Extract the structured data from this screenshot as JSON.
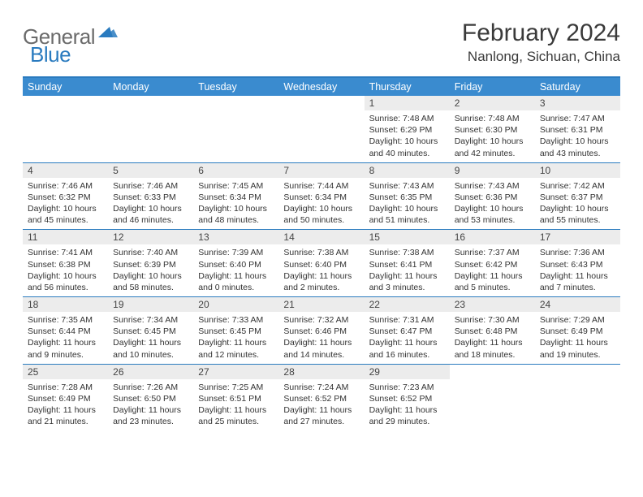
{
  "logo": {
    "text1": "General",
    "text2": "Blue",
    "text1_color": "#6b6b6b",
    "text2_color": "#2a7bbf",
    "tri_fill": "#2a7bbf"
  },
  "title": {
    "month": "February 2024",
    "location": "Nanlong, Sichuan, China"
  },
  "style": {
    "header_bg": "#3a8bcf",
    "header_text": "#ffffff",
    "border_color": "#2a7bbf",
    "daynum_bg": "#ececec",
    "body_bg": "#ffffff",
    "text_color": "#333333",
    "font_family": "Arial, Helvetica, sans-serif",
    "month_title_fontsize": 30,
    "location_fontsize": 17,
    "weekday_fontsize": 12.5,
    "daynum_fontsize": 12,
    "cell_fontsize": 10.5
  },
  "calendar": {
    "type": "table",
    "weekdays": [
      "Sunday",
      "Monday",
      "Tuesday",
      "Wednesday",
      "Thursday",
      "Friday",
      "Saturday"
    ],
    "weeks": [
      [
        {
          "empty": true
        },
        {
          "empty": true
        },
        {
          "empty": true
        },
        {
          "empty": true
        },
        {
          "day": "1",
          "sunrise": "7:48 AM",
          "sunset": "6:29 PM",
          "daylight": "10 hours and 40 minutes."
        },
        {
          "day": "2",
          "sunrise": "7:48 AM",
          "sunset": "6:30 PM",
          "daylight": "10 hours and 42 minutes."
        },
        {
          "day": "3",
          "sunrise": "7:47 AM",
          "sunset": "6:31 PM",
          "daylight": "10 hours and 43 minutes."
        }
      ],
      [
        {
          "day": "4",
          "sunrise": "7:46 AM",
          "sunset": "6:32 PM",
          "daylight": "10 hours and 45 minutes."
        },
        {
          "day": "5",
          "sunrise": "7:46 AM",
          "sunset": "6:33 PM",
          "daylight": "10 hours and 46 minutes."
        },
        {
          "day": "6",
          "sunrise": "7:45 AM",
          "sunset": "6:34 PM",
          "daylight": "10 hours and 48 minutes."
        },
        {
          "day": "7",
          "sunrise": "7:44 AM",
          "sunset": "6:34 PM",
          "daylight": "10 hours and 50 minutes."
        },
        {
          "day": "8",
          "sunrise": "7:43 AM",
          "sunset": "6:35 PM",
          "daylight": "10 hours and 51 minutes."
        },
        {
          "day": "9",
          "sunrise": "7:43 AM",
          "sunset": "6:36 PM",
          "daylight": "10 hours and 53 minutes."
        },
        {
          "day": "10",
          "sunrise": "7:42 AM",
          "sunset": "6:37 PM",
          "daylight": "10 hours and 55 minutes."
        }
      ],
      [
        {
          "day": "11",
          "sunrise": "7:41 AM",
          "sunset": "6:38 PM",
          "daylight": "10 hours and 56 minutes."
        },
        {
          "day": "12",
          "sunrise": "7:40 AM",
          "sunset": "6:39 PM",
          "daylight": "10 hours and 58 minutes."
        },
        {
          "day": "13",
          "sunrise": "7:39 AM",
          "sunset": "6:40 PM",
          "daylight": "11 hours and 0 minutes."
        },
        {
          "day": "14",
          "sunrise": "7:38 AM",
          "sunset": "6:40 PM",
          "daylight": "11 hours and 2 minutes."
        },
        {
          "day": "15",
          "sunrise": "7:38 AM",
          "sunset": "6:41 PM",
          "daylight": "11 hours and 3 minutes."
        },
        {
          "day": "16",
          "sunrise": "7:37 AM",
          "sunset": "6:42 PM",
          "daylight": "11 hours and 5 minutes."
        },
        {
          "day": "17",
          "sunrise": "7:36 AM",
          "sunset": "6:43 PM",
          "daylight": "11 hours and 7 minutes."
        }
      ],
      [
        {
          "day": "18",
          "sunrise": "7:35 AM",
          "sunset": "6:44 PM",
          "daylight": "11 hours and 9 minutes."
        },
        {
          "day": "19",
          "sunrise": "7:34 AM",
          "sunset": "6:45 PM",
          "daylight": "11 hours and 10 minutes."
        },
        {
          "day": "20",
          "sunrise": "7:33 AM",
          "sunset": "6:45 PM",
          "daylight": "11 hours and 12 minutes."
        },
        {
          "day": "21",
          "sunrise": "7:32 AM",
          "sunset": "6:46 PM",
          "daylight": "11 hours and 14 minutes."
        },
        {
          "day": "22",
          "sunrise": "7:31 AM",
          "sunset": "6:47 PM",
          "daylight": "11 hours and 16 minutes."
        },
        {
          "day": "23",
          "sunrise": "7:30 AM",
          "sunset": "6:48 PM",
          "daylight": "11 hours and 18 minutes."
        },
        {
          "day": "24",
          "sunrise": "7:29 AM",
          "sunset": "6:49 PM",
          "daylight": "11 hours and 19 minutes."
        }
      ],
      [
        {
          "day": "25",
          "sunrise": "7:28 AM",
          "sunset": "6:49 PM",
          "daylight": "11 hours and 21 minutes."
        },
        {
          "day": "26",
          "sunrise": "7:26 AM",
          "sunset": "6:50 PM",
          "daylight": "11 hours and 23 minutes."
        },
        {
          "day": "27",
          "sunrise": "7:25 AM",
          "sunset": "6:51 PM",
          "daylight": "11 hours and 25 minutes."
        },
        {
          "day": "28",
          "sunrise": "7:24 AM",
          "sunset": "6:52 PM",
          "daylight": "11 hours and 27 minutes."
        },
        {
          "day": "29",
          "sunrise": "7:23 AM",
          "sunset": "6:52 PM",
          "daylight": "11 hours and 29 minutes."
        },
        {
          "empty": true
        },
        {
          "empty": true
        }
      ]
    ]
  },
  "labels": {
    "sunrise": "Sunrise:",
    "sunset": "Sunset:",
    "daylight": "Daylight:"
  }
}
